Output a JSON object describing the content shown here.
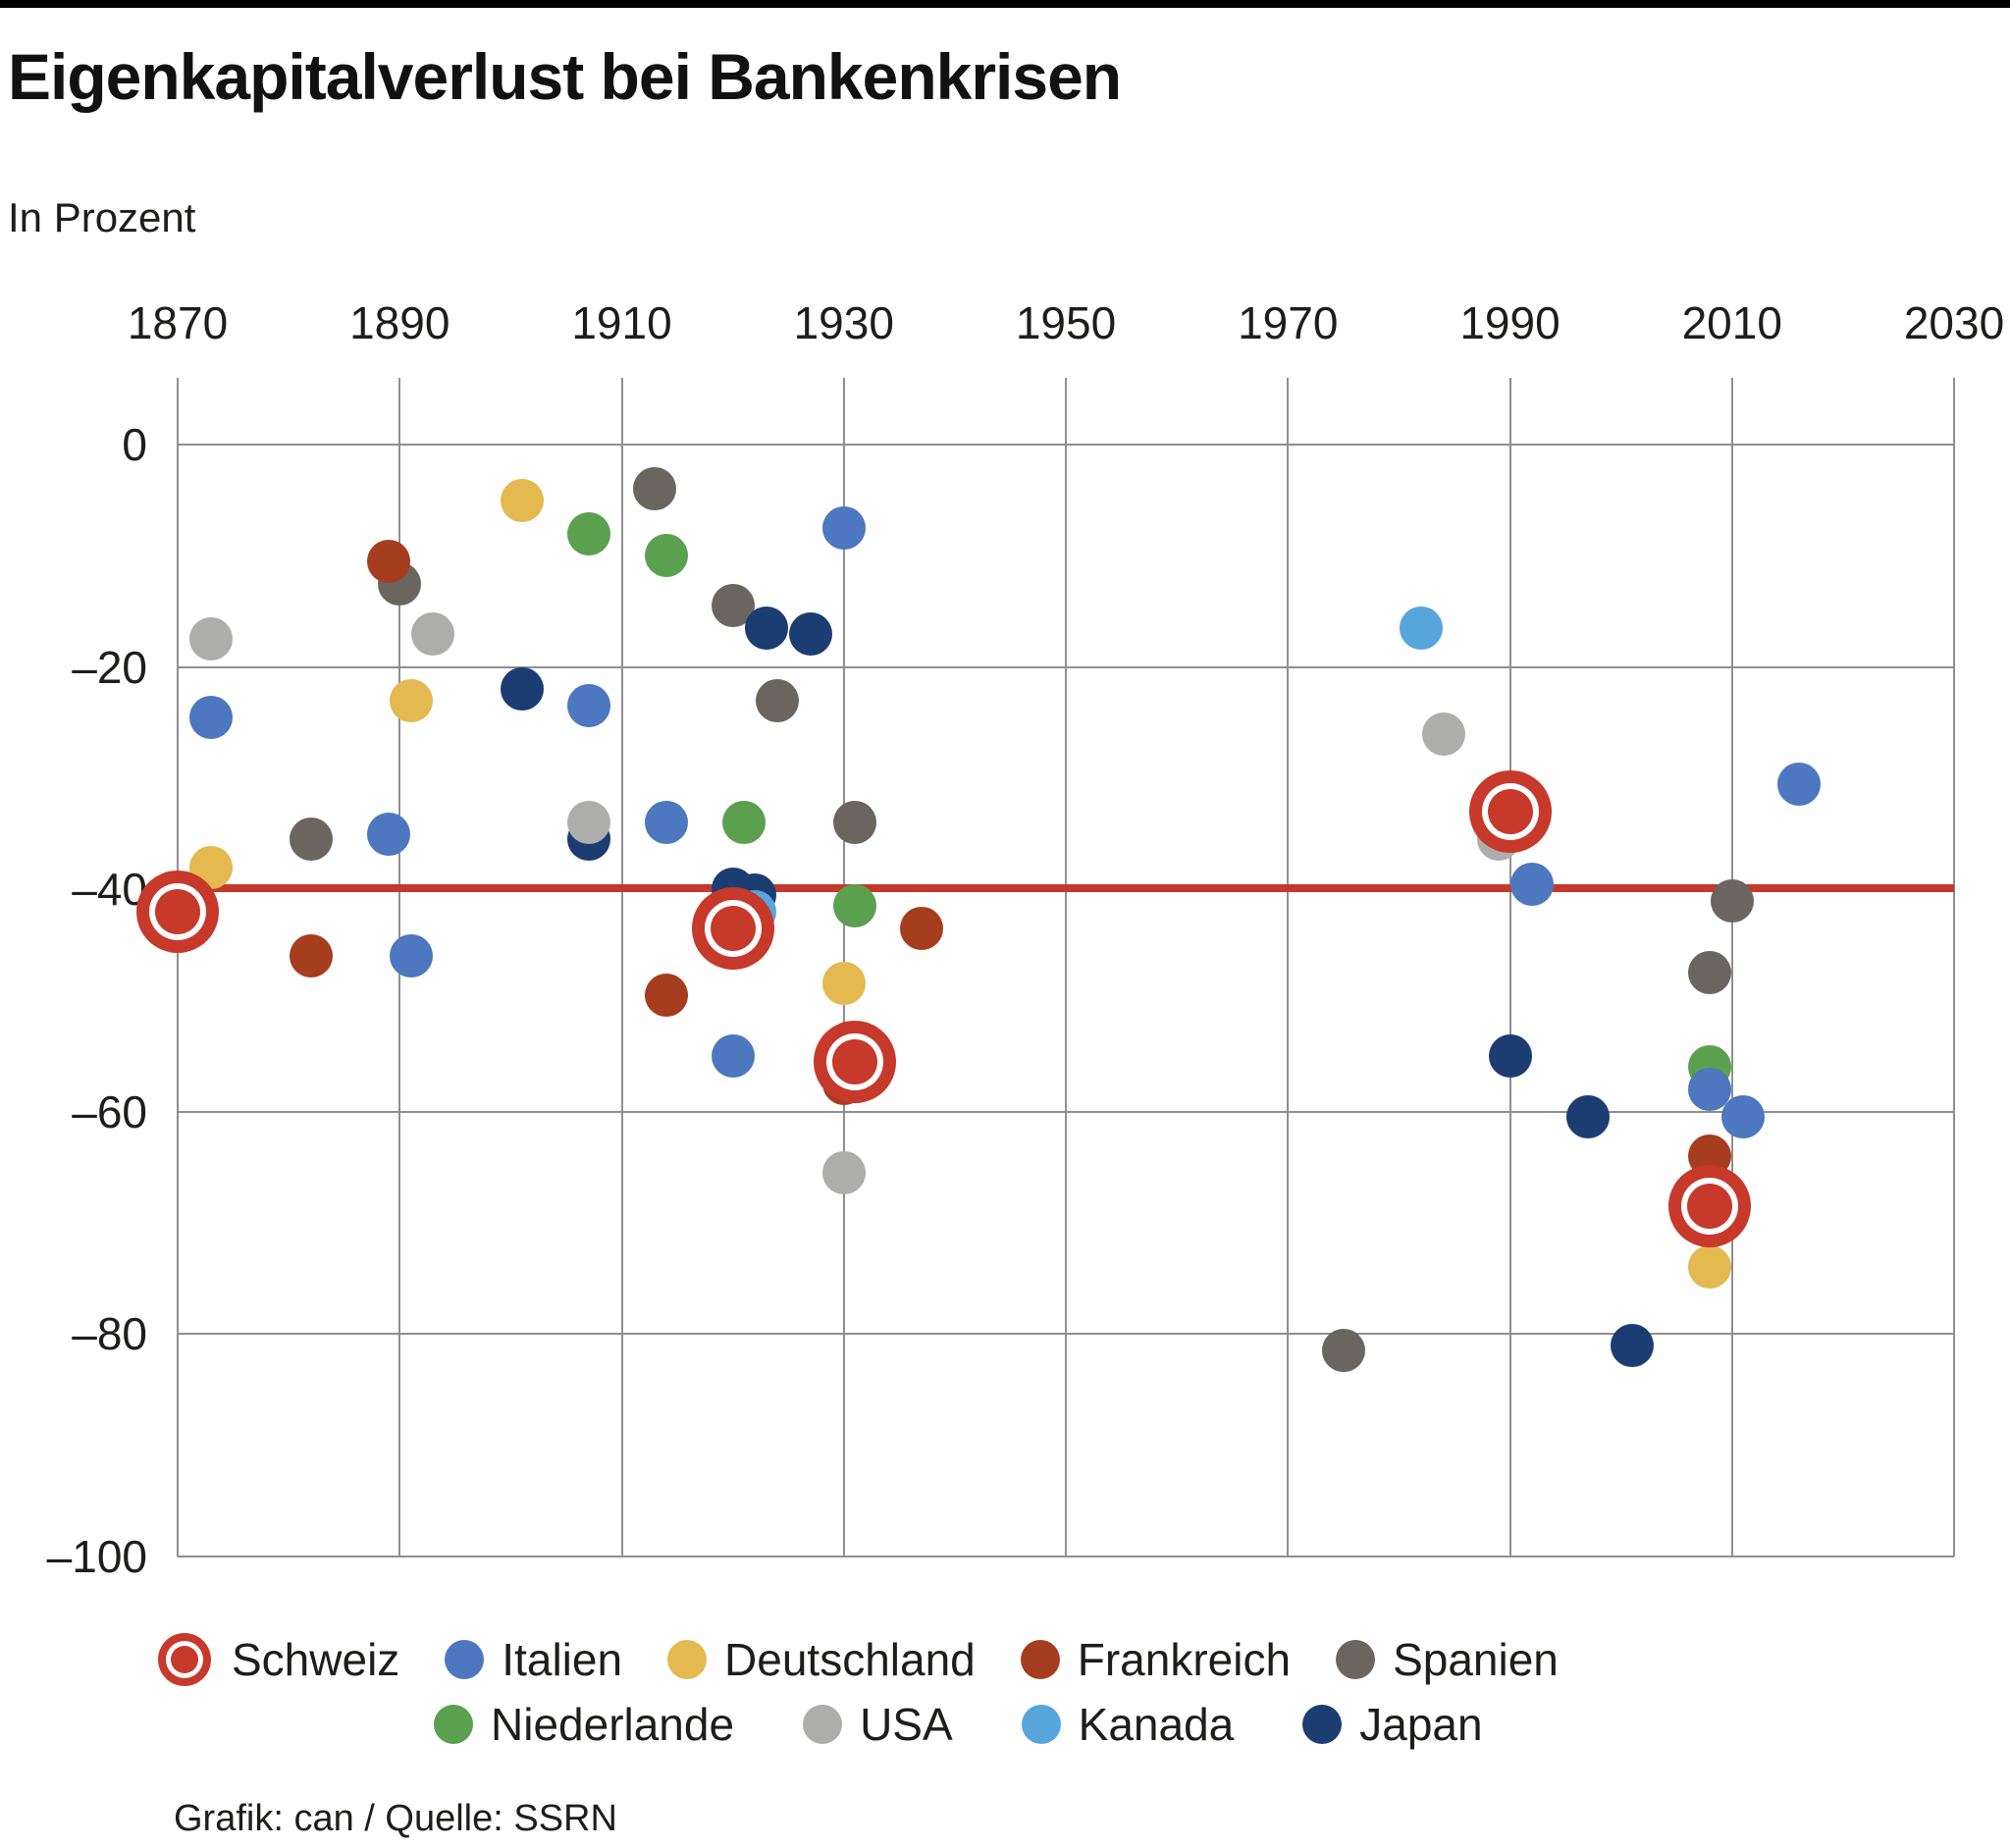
{
  "page": {
    "title": "Eigenkapitalverlust bei Bankenkrisen",
    "subtitle": "In Prozent",
    "footer": "Grafik: can / Quelle: SSRN"
  },
  "colors": {
    "accent_red": "#c5392b",
    "grid": "#8f8f8f",
    "text": "#1d1d1b",
    "topbar": "#000000"
  },
  "chart_data": {
    "type": "scatter",
    "title": "Eigenkapitalverlust bei Bankenkrisen",
    "unit_label": "In Prozent",
    "grid": true,
    "legend_position": "bottom",
    "x_axis_position": "top",
    "x_range": [
      1870,
      2030
    ],
    "y_range": [
      6,
      -100
    ],
    "x_ticks": [
      1870,
      1890,
      1910,
      1930,
      1950,
      1970,
      1990,
      2010,
      2030
    ],
    "x_tick_labels": [
      "1870",
      "1890",
      "1910",
      "1930",
      "1950",
      "1970",
      "1990",
      "2010",
      "2030"
    ],
    "y_ticks": [
      0,
      -20,
      -40,
      -60,
      -80,
      -100
    ],
    "y_tick_labels": [
      "0",
      "–20",
      "–40",
      "–60",
      "–80",
      "–100"
    ],
    "mean_line": {
      "value": -39.9,
      "color": "#c5392b"
    },
    "series": [
      {
        "name": "Schweiz",
        "color": "#c6392b",
        "marker": "ring",
        "points": [
          [
            1870,
            -42
          ],
          [
            1920,
            -43.5
          ],
          [
            1931,
            -55.5
          ],
          [
            1990,
            -33
          ],
          [
            2008,
            -68.5
          ]
        ]
      },
      {
        "name": "Italien",
        "color": "#4d77be",
        "marker": "dot",
        "points": [
          [
            1873,
            -24.5
          ],
          [
            1889,
            -35
          ],
          [
            1891,
            -46
          ],
          [
            1907,
            -23.5
          ],
          [
            1914,
            -34
          ],
          [
            1920,
            -55
          ],
          [
            1930,
            -7.5
          ],
          [
            1992,
            -39.5
          ],
          [
            2008,
            -58
          ],
          [
            2011,
            -60.5
          ],
          [
            2016,
            -30.5
          ]
        ]
      },
      {
        "name": "Deutschland",
        "color": "#e3b950",
        "marker": "dot",
        "points": [
          [
            1873,
            -38
          ],
          [
            1891,
            -23
          ],
          [
            1901,
            -5
          ],
          [
            1930,
            -48.5
          ],
          [
            2008,
            -74
          ]
        ]
      },
      {
        "name": "Frankreich",
        "color": "#a63d1e",
        "marker": "dot",
        "points": [
          [
            1882,
            -46
          ],
          [
            1889,
            -10.5
          ],
          [
            1914,
            -49.5
          ],
          [
            1930,
            -57.5
          ],
          [
            1937,
            -43.5
          ],
          [
            2008,
            -64
          ]
        ]
      },
      {
        "name": "Spanien",
        "color": "#6b655f",
        "marker": "dot",
        "points": [
          [
            1882,
            -35.5
          ],
          [
            1890,
            -12.5
          ],
          [
            1913,
            -4
          ],
          [
            1920,
            -14.5
          ],
          [
            1924,
            -23
          ],
          [
            1931,
            -34
          ],
          [
            1975,
            -81.5
          ],
          [
            2008,
            -47.5
          ],
          [
            2010,
            -41
          ]
        ]
      },
      {
        "name": "Niederlande",
        "color": "#5ba04f",
        "marker": "dot",
        "points": [
          [
            1907,
            -8
          ],
          [
            1914,
            -10
          ],
          [
            1921,
            -34
          ],
          [
            1931,
            -41.5
          ],
          [
            2008,
            -56
          ]
        ]
      },
      {
        "name": "USA",
        "color": "#adadab",
        "marker": "dot",
        "points": [
          [
            1873,
            -17.5
          ],
          [
            1893,
            -17
          ],
          [
            1907,
            -34
          ],
          [
            1930,
            -65.5
          ],
          [
            1984,
            -26
          ],
          [
            1989,
            -35.5
          ],
          [
            2007,
            -69
          ]
        ]
      },
      {
        "name": "Kanada",
        "color": "#58a5dc",
        "marker": "dot",
        "points": [
          [
            1922,
            -42
          ],
          [
            1982,
            -16.5
          ]
        ]
      },
      {
        "name": "Japan",
        "color": "#1b3d72",
        "marker": "dot",
        "points": [
          [
            1901,
            -22
          ],
          [
            1907,
            -35.5
          ],
          [
            1920,
            -40
          ],
          [
            1922,
            -40.5
          ],
          [
            1923,
            -16.5
          ],
          [
            1927,
            -17
          ],
          [
            1990,
            -55
          ],
          [
            1997,
            -60.5
          ],
          [
            2001,
            -81
          ]
        ]
      }
    ],
    "z_order": [
      "Spanien",
      "Japan",
      "USA",
      "Kanada",
      "Niederlande",
      "Frankreich",
      "Deutschland",
      "Italien",
      "Schweiz"
    ],
    "legend_rows": [
      [
        "Schweiz",
        "Italien",
        "Deutschland",
        "Frankreich",
        "Spanien"
      ],
      [
        "Niederlande",
        "USA",
        "Kanada",
        "Japan"
      ]
    ]
  }
}
